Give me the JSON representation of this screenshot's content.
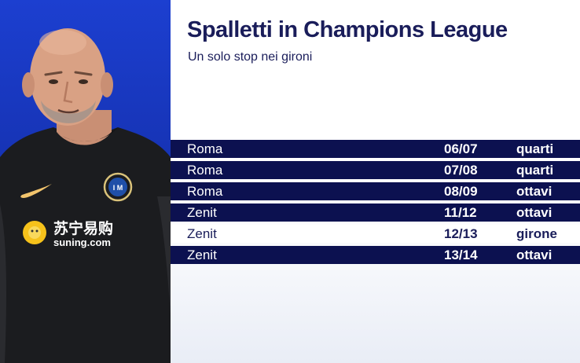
{
  "header": {
    "title": "Spalletti in Champions League",
    "subtitle": "Un solo stop nei gironi"
  },
  "portrait": {
    "sponsor_chinese": "苏宁易购",
    "sponsor_text": "suning.com"
  },
  "table": {
    "rows": [
      {
        "club": "Roma",
        "season": "06/07",
        "stage": "quarti",
        "style": "dark"
      },
      {
        "club": "Roma",
        "season": "07/08",
        "stage": "quarti",
        "style": "dark"
      },
      {
        "club": "Roma",
        "season": "08/09",
        "stage": "ottavi",
        "style": "dark"
      },
      {
        "club": "Zenit",
        "season": "11/12",
        "stage": "ottavi",
        "style": "dark"
      },
      {
        "club": "Zenit",
        "season": "12/13",
        "stage": "girone",
        "style": "light"
      },
      {
        "club": "Zenit",
        "season": "13/14",
        "stage": "ottavi",
        "style": "dark"
      }
    ]
  },
  "colors": {
    "panel_blue": "#1633b4",
    "row_navy": "#0c1150",
    "title_navy": "#1a1d5a"
  }
}
